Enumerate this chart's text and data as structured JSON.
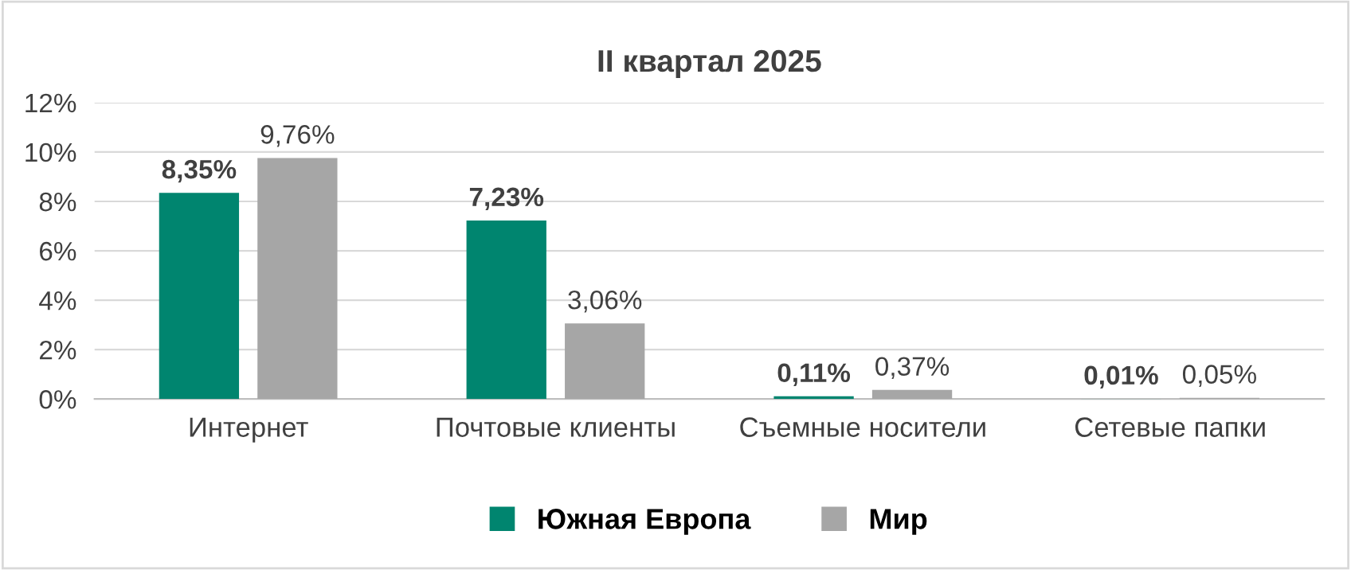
{
  "chart_data": {
    "type": "bar",
    "title": "II квартал 2025",
    "categories": [
      "Интернет",
      "Почтовые клиенты",
      "Съемные носители",
      "Сетевые папки"
    ],
    "series": [
      {
        "name": "Южная Европа",
        "color": "#00856f",
        "values": [
          8.35,
          7.23,
          0.11,
          0.01
        ],
        "value_labels": [
          "8,35%",
          "7,23%",
          "0,11%",
          "0,01%"
        ]
      },
      {
        "name": "Мир",
        "color": "#a6a6a6",
        "values": [
          9.76,
          3.06,
          0.37,
          0.05
        ],
        "value_labels": [
          "9,76%",
          "3,06%",
          "0,37%",
          "0,05%"
        ]
      }
    ],
    "ylim": [
      0,
      12
    ],
    "yticks": [
      {
        "value": 0,
        "label": "0%"
      },
      {
        "value": 2,
        "label": "2%"
      },
      {
        "value": 4,
        "label": "4%"
      },
      {
        "value": 6,
        "label": "6%"
      },
      {
        "value": 8,
        "label": "8%"
      },
      {
        "value": 10,
        "label": "10%"
      },
      {
        "value": 12,
        "label": "12%"
      }
    ],
    "grid": "y",
    "legend": "bottom"
  }
}
